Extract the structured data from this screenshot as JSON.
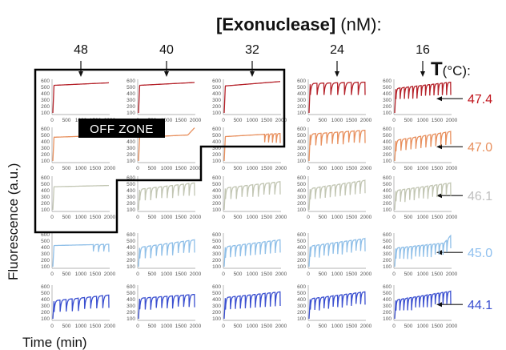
{
  "header": {
    "title_bold": "[Exonuclease]",
    "title_rest": " (nM):",
    "temp_title_bold": "T",
    "temp_title_rest": "(°C):"
  },
  "axes": {
    "ylabel": "Fluorescence (a.u.)",
    "xlabel": "Time (min)"
  },
  "off_zone_label": "OFF ZONE",
  "chart_data": {
    "type": "line",
    "layout": "grid of small multiples (5 rows x 5 columns)",
    "columns_label": "[Exonuclease] (nM)",
    "rows_label": "T (°C)",
    "concentrations_nM": [
      "48",
      "40",
      "32",
      "24",
      "16"
    ],
    "temperatures_C": [
      "47.4",
      "47.0",
      "46.1",
      "45.0",
      "44.1"
    ],
    "row_colors": [
      "#b5222a",
      "#e8905e",
      "#c2c6b3",
      "#8fbfe8",
      "#3a4fd0"
    ],
    "temperature_label_colors": [
      "#c0141c",
      "#e8905e",
      "#bfbfbf",
      "#8fc0ef",
      "#3a4fd0"
    ],
    "xlim": [
      0,
      2000
    ],
    "ylim": [
      100,
      600
    ],
    "x_ticks": [
      "0",
      "500",
      "1000",
      "1500",
      "2000"
    ],
    "y_ticks": [
      "600",
      "500",
      "400",
      "300",
      "200",
      "100"
    ],
    "off_zone": {
      "label": "OFF ZONE",
      "cells": [
        [
          "48",
          "47.4"
        ],
        [
          "40",
          "47.4"
        ],
        [
          "32",
          "47.4"
        ],
        [
          "48",
          "47.0"
        ],
        [
          "40",
          "47.0"
        ],
        [
          "48",
          "46.1"
        ]
      ]
    },
    "cells": [
      [
        {
          "shape": "flat",
          "base": 530,
          "end": 570,
          "amp": 0,
          "cycles": 0,
          "rise": 0
        },
        {
          "shape": "flat",
          "base": 530,
          "end": 575,
          "amp": 0,
          "cycles": 0,
          "rise": 0
        },
        {
          "shape": "flat",
          "base": 520,
          "end": 590,
          "amp": 0,
          "cycles": 0,
          "rise": 0
        },
        {
          "shape": "osc",
          "base": 560,
          "end": 580,
          "amp": 200,
          "cycles": 8,
          "rise": 0
        },
        {
          "shape": "osc",
          "base": 480,
          "end": 580,
          "amp": 200,
          "cycles": 13,
          "rise": 0
        }
      ],
      [
        {
          "shape": "flat",
          "base": 470,
          "end": 500,
          "amp": 0,
          "cycles": 0,
          "rise": 0
        },
        {
          "shape": "flat",
          "base": 470,
          "end": 510,
          "amp": 0,
          "cycles": 0,
          "rise": 1
        },
        {
          "shape": "late",
          "base": 480,
          "end": 530,
          "amp": 150,
          "cycles": 4,
          "rise": 0
        },
        {
          "shape": "osc",
          "base": 520,
          "end": 580,
          "amp": 200,
          "cycles": 10,
          "rise": 0
        },
        {
          "shape": "osc",
          "base": 420,
          "end": 560,
          "amp": 200,
          "cycles": 11,
          "rise": 0
        }
      ],
      [
        {
          "shape": "flat",
          "base": 460,
          "end": 480,
          "amp": 0,
          "cycles": 0,
          "rise": 0
        },
        {
          "shape": "osc",
          "base": 420,
          "end": 520,
          "amp": 200,
          "cycles": 10,
          "rise": 0
        },
        {
          "shape": "osc",
          "base": 440,
          "end": 540,
          "amp": 200,
          "cycles": 10,
          "rise": 0
        },
        {
          "shape": "osc",
          "base": 430,
          "end": 560,
          "amp": 200,
          "cycles": 11,
          "rise": 0
        },
        {
          "shape": "osc",
          "base": 400,
          "end": 520,
          "amp": 200,
          "cycles": 12,
          "rise": 0
        }
      ],
      [
        {
          "shape": "late",
          "base": 430,
          "end": 450,
          "amp": 120,
          "cycles": 3,
          "rise": 0
        },
        {
          "shape": "osc",
          "base": 400,
          "end": 520,
          "amp": 200,
          "cycles": 10,
          "rise": 0
        },
        {
          "shape": "osc",
          "base": 410,
          "end": 520,
          "amp": 200,
          "cycles": 11,
          "rise": 0
        },
        {
          "shape": "osc",
          "base": 420,
          "end": 540,
          "amp": 200,
          "cycles": 12,
          "rise": 0
        },
        {
          "shape": "osc",
          "base": 390,
          "end": 480,
          "amp": 200,
          "cycles": 14,
          "rise": 1
        }
      ],
      [
        {
          "shape": "osc",
          "base": 380,
          "end": 470,
          "amp": 200,
          "cycles": 9,
          "rise": 0
        },
        {
          "shape": "osc",
          "base": 420,
          "end": 480,
          "amp": 200,
          "cycles": 10,
          "rise": 0
        },
        {
          "shape": "osc",
          "base": 430,
          "end": 520,
          "amp": 220,
          "cycles": 11,
          "rise": 0
        },
        {
          "shape": "osc",
          "base": 410,
          "end": 520,
          "amp": 200,
          "cycles": 12,
          "rise": 0
        },
        {
          "shape": "osc",
          "base": 390,
          "end": 530,
          "amp": 200,
          "cycles": 14,
          "rise": 0
        }
      ]
    ]
  }
}
